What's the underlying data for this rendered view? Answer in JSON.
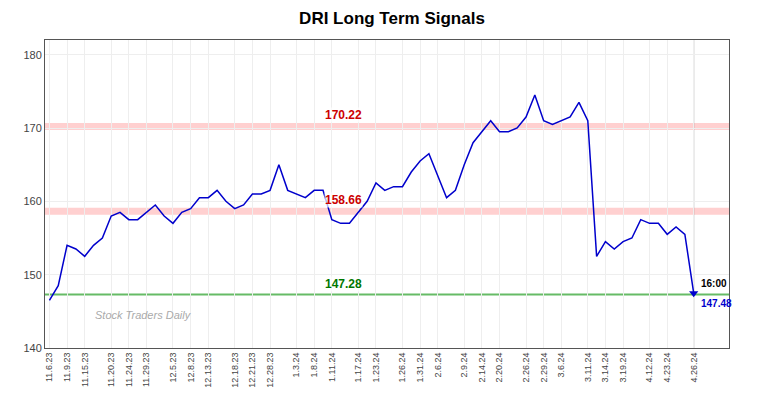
{
  "chart_data": {
    "type": "line",
    "title": "DRI Long Term Signals",
    "categories": [
      "11.6.23",
      null,
      "11.9.23",
      null,
      "11.15.23",
      null,
      null,
      "11.20.23",
      null,
      "11.24.23",
      null,
      "11.29.23",
      null,
      null,
      "12.5.23",
      null,
      "12.8.23",
      null,
      "12.13.23",
      null,
      null,
      "12.18.23",
      null,
      "12.21.23",
      null,
      "12.28.23",
      null,
      null,
      "1.3.24",
      null,
      "1.8.24",
      null,
      "1.11.24",
      null,
      null,
      "1.17.24",
      null,
      "1.23.24",
      null,
      null,
      "1.26.24",
      null,
      "1.31.24",
      null,
      "2.6.24",
      null,
      null,
      "2.9.24",
      null,
      "2.14.24",
      null,
      "2.20.24",
      null,
      null,
      "2.26.24",
      null,
      "2.29.24",
      null,
      "3.6.24",
      null,
      null,
      "3.11.24",
      null,
      "3.14.24",
      null,
      "3.19.24",
      null,
      null,
      "4.12.24",
      null,
      "4.23.24",
      null,
      null,
      "4.26.24"
    ],
    "values": [
      146.5,
      148.5,
      154.0,
      153.5,
      152.5,
      154.0,
      155.0,
      158.0,
      158.5,
      157.5,
      157.5,
      158.5,
      159.5,
      158.0,
      157.0,
      158.5,
      159.0,
      160.5,
      160.5,
      161.5,
      160.0,
      159.0,
      159.5,
      161.0,
      161.0,
      161.5,
      165.0,
      161.5,
      161.0,
      160.5,
      161.5,
      161.5,
      157.5,
      157.0,
      157.0,
      158.5,
      160.0,
      162.5,
      161.5,
      162.0,
      162.0,
      164.0,
      165.5,
      166.5,
      163.5,
      160.5,
      161.5,
      165.0,
      168.0,
      169.5,
      171.0,
      169.5,
      169.5,
      170.0,
      171.5,
      174.5,
      171.0,
      170.5,
      171.0,
      171.5,
      173.5,
      171.0,
      152.5,
      154.5,
      153.5,
      154.5,
      155.0,
      157.5,
      157.0,
      157.0,
      155.5,
      156.5,
      155.5,
      147.48
    ],
    "color": "#0000cc",
    "marker": "triangle-down",
    "ylim": [
      140,
      182
    ],
    "yticks": [
      140,
      150,
      160,
      170,
      180
    ],
    "grid": true,
    "reference_lines": [
      {
        "y": 170.22,
        "label": "170.22",
        "color": "#ffaaaa",
        "label_color": "#cc0000"
      },
      {
        "y": 158.66,
        "label": "158.66",
        "color": "#ffaaaa",
        "label_color": "#cc0000"
      },
      {
        "y": 147.28,
        "label": "147.28",
        "color": "#66bb66",
        "label_color": "#007700"
      }
    ],
    "last_point_labels": [
      {
        "text": "16:00",
        "color": "#000000"
      },
      {
        "text": "147.48",
        "color": "#0000cc"
      }
    ],
    "watermark": "Stock Traders Daily"
  }
}
